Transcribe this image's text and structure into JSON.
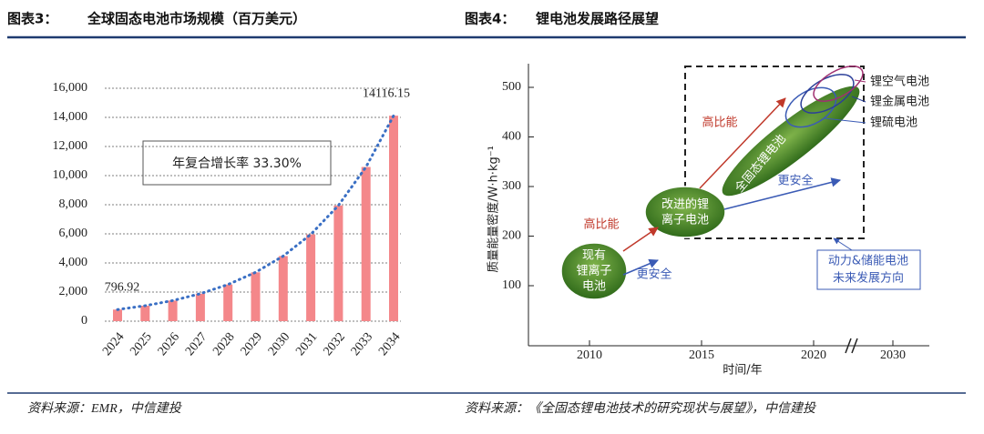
{
  "headers": [
    {
      "label": "图表3：",
      "title": "全球固态电池市场规模（百万美元）"
    },
    {
      "label": "图表4：",
      "title": "锂电池发展路径展望"
    }
  ],
  "chart_data": {
    "type": "bar",
    "categories": [
      "2024",
      "2025",
      "2026",
      "2027",
      "2028",
      "2029",
      "2030",
      "2031",
      "2032",
      "2033",
      "2034"
    ],
    "values": [
      796.92,
      1062,
      1416,
      1888,
      2517,
      3355,
      4472,
      5961,
      7946,
      10592,
      14116.15
    ],
    "labeled_points": [
      0,
      10
    ],
    "color": "#f4878a",
    "trend_color": "#3a6fc4",
    "annotation": "年复合增长率 33.30%",
    "ylim": [
      0,
      16000
    ],
    "yticks": [
      0,
      {
        "value": 2000,
        "label": "2,000"
      },
      {
        "value": 4000,
        "label": "4,000"
      },
      {
        "value": 6000,
        "label": "6,000"
      },
      {
        "value": 8000,
        "label": "8,000"
      },
      {
        "value": 10000,
        "label": "10,000"
      },
      {
        "value": 12000,
        "label": "12,000"
      },
      {
        "value": 14000,
        "label": "14,000"
      },
      {
        "value": 16000,
        "label": "16,000"
      }
    ],
    "grid": true
  },
  "diagram": {
    "y_label": "质量能量密度/W·h·kg⁻¹",
    "x_label": "时间/年",
    "yticks": [
      100,
      200,
      300,
      400,
      500
    ],
    "xticks": [
      2010,
      2015,
      2020,
      2030
    ],
    "nodes": [
      {
        "lines": [
          "现有",
          "锂离子",
          "电池"
        ]
      },
      {
        "lines": [
          "改进的锂",
          "离子电池"
        ]
      },
      {
        "lines": [
          "全固态锂电池"
        ]
      }
    ],
    "arrows": [
      "高比能",
      "更安全",
      "高比能",
      "更安全"
    ],
    "callouts": [
      "锂空气电池",
      "锂金属电池",
      "锂硫电池"
    ],
    "future": [
      "动力&储能电池",
      "未来发展方向"
    ]
  },
  "sources": [
    "资料来源：EMR，中信建投",
    "资料来源：《全固态锂电池技术的研究现状与展望》，中信建投"
  ]
}
